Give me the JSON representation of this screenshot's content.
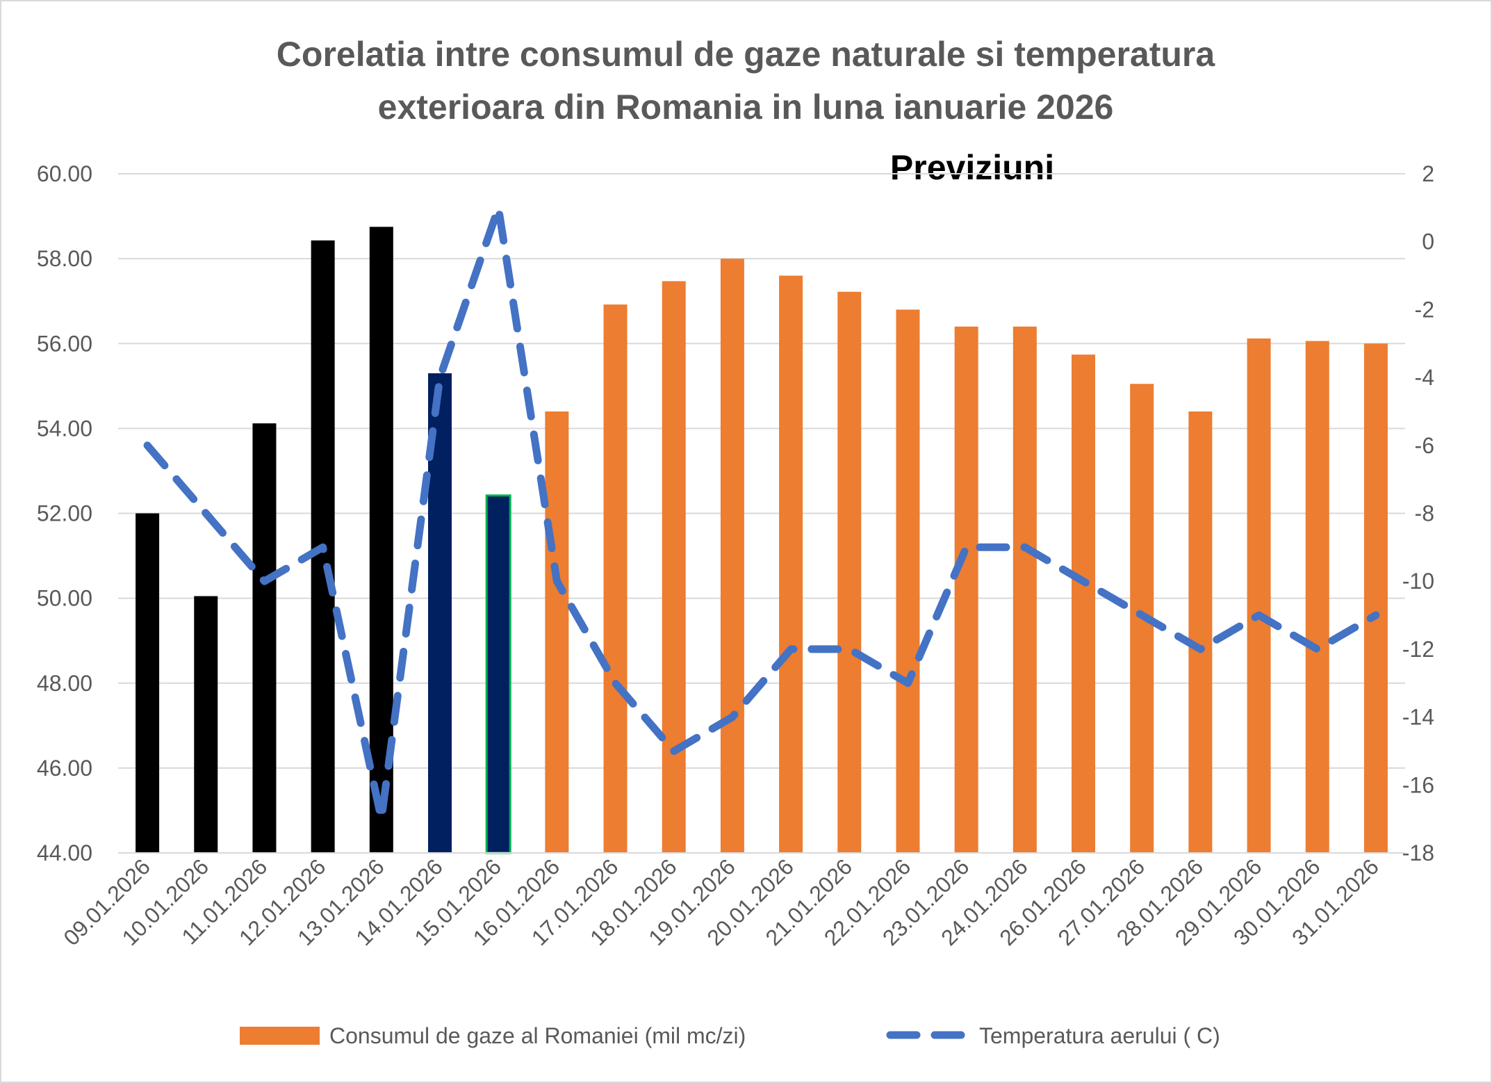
{
  "chart_data": {
    "type": "bar",
    "title": "Corelatia intre consumul de gaze naturale si temperatura exterioara din Romania in luna ianuarie 2026",
    "title_lines": [
      "Corelatia intre consumul de gaze naturale si temperatura",
      "exterioara din Romania in luna ianuarie 2026"
    ],
    "annotation": "Previziuni",
    "categories": [
      "09.01.2026",
      "10.01.2026",
      "11.01.2026",
      "12.01.2026",
      "13.01.2026",
      "14.01.2026",
      "15.01.2026",
      "16.01.2026",
      "17.01.2026",
      "18.01.2026",
      "19.01.2026",
      "20.01.2026",
      "21.01.2026",
      "22.01.2026",
      "23.01.2026",
      "24.01.2026",
      "26.01.2026",
      "27.01.2026",
      "28.01.2026",
      "29.01.2026",
      "30.01.2026",
      "31.01.2026"
    ],
    "y_left": {
      "ylim": [
        44,
        60
      ],
      "ticks": [
        "44.00",
        "46.00",
        "48.00",
        "50.00",
        "52.00",
        "54.00",
        "56.00",
        "58.00",
        "60.00"
      ]
    },
    "y_right": {
      "ylim": [
        -18,
        2
      ],
      "ticks": [
        "-18",
        "-16",
        "-14",
        "-12",
        "-10",
        "-8",
        "-6",
        "-4",
        "-2",
        "0",
        "2"
      ]
    },
    "grid": true,
    "legend_position": "bottom",
    "series": [
      {
        "name": "Consumul de gaze al Romaniei (mil mc/zi)",
        "kind": "bar",
        "axis": "left",
        "color": "#ED7D31",
        "values": [
          52.0,
          50.05,
          54.12,
          58.43,
          58.75,
          55.3,
          52.42,
          54.4,
          56.92,
          57.47,
          58.0,
          57.6,
          57.22,
          56.8,
          56.4,
          56.4,
          55.74,
          55.05,
          54.4,
          56.12,
          56.06,
          56.0
        ],
        "bar_colors": [
          "#000000",
          "#000000",
          "#000000",
          "#000000",
          "#000000",
          "#002060",
          "#002060",
          "#ED7D31",
          "#ED7D31",
          "#ED7D31",
          "#ED7D31",
          "#ED7D31",
          "#ED7D31",
          "#ED7D31",
          "#ED7D31",
          "#ED7D31",
          "#ED7D31",
          "#ED7D31",
          "#ED7D31",
          "#ED7D31",
          "#ED7D31",
          "#ED7D31"
        ],
        "bar_outline": {
          "index": 6,
          "color": "#00B050"
        }
      },
      {
        "name": "Temperatura aerului ( C)",
        "kind": "line",
        "style": "dashed",
        "axis": "right",
        "color": "#4472C4",
        "values": [
          -6,
          -8,
          -10,
          -9,
          -17,
          -4,
          1,
          -10,
          -13,
          -15,
          -14,
          -12,
          -12,
          -13,
          -9,
          -9,
          -10,
          -11,
          -12,
          -11,
          -12,
          -11
        ]
      }
    ]
  }
}
